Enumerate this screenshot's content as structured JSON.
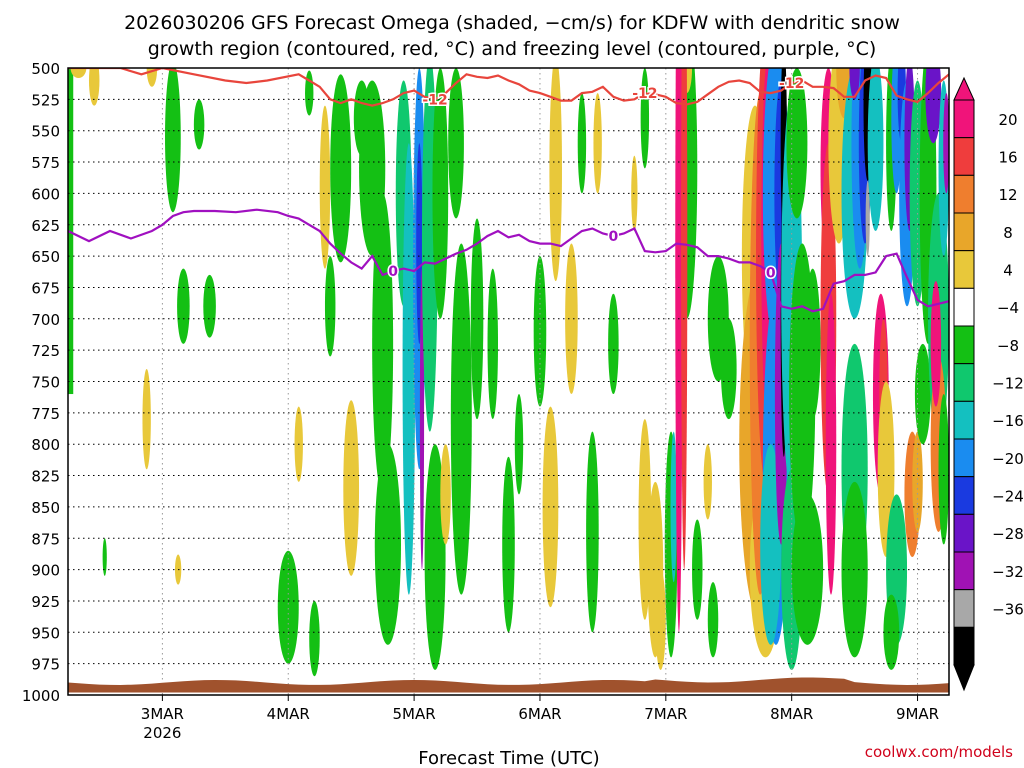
{
  "title_line1": "2026030206 GFS Forecast Omega (shaded, −cm/s) for KDFW with dendritic snow",
  "title_line2": "growth region (contoured, red, °C) and freezing level (contoured, purple, °C)",
  "x_axis_label": "Forecast Time (UTC)",
  "credit": "coolwx.com/models",
  "chart_data": {
    "type": "heatmap",
    "y_ticks": [
      "500",
      "525",
      "550",
      "575",
      "600",
      "625",
      "650",
      "675",
      "700",
      "725",
      "750",
      "775",
      "800",
      "825",
      "850",
      "875",
      "900",
      "925",
      "950",
      "975",
      "1000"
    ],
    "y_range": [
      500,
      1000
    ],
    "x_range_hours": [
      0,
      168
    ],
    "x_ticks": [
      {
        "label": "3MAR",
        "sub": "2026",
        "hour": 18
      },
      {
        "label": "4MAR",
        "sub": "",
        "hour": 42
      },
      {
        "label": "5MAR",
        "sub": "",
        "hour": 66
      },
      {
        "label": "6MAR",
        "sub": "",
        "hour": 90
      },
      {
        "label": "7MAR",
        "sub": "",
        "hour": 114
      },
      {
        "label": "8MAR",
        "sub": "",
        "hour": 138
      },
      {
        "label": "9MAR",
        "sub": "",
        "hour": 162
      }
    ],
    "grid": true,
    "colorbar": {
      "labels": [
        "20",
        "16",
        "12",
        "8",
        "4",
        "−4",
        "−8",
        "−12",
        "−16",
        "−20",
        "−24",
        "−28",
        "−32",
        "−36"
      ],
      "colors": [
        "#f0147a",
        "#ef3d3d",
        "#ef7e2e",
        "#e8a62a",
        "#e8c83a",
        "#ffffff",
        "#14c014",
        "#10c86e",
        "#14c0c0",
        "#1a8cf0",
        "#1a3ae0",
        "#6a14c8",
        "#a012b4",
        "#a8a8a8",
        "#000000"
      ]
    },
    "series": [
      {
        "name": "-12",
        "color": "#e8453c",
        "x": [
          0,
          10,
          14,
          18,
          24,
          30,
          34,
          38,
          44,
          46,
          48,
          50,
          52,
          54,
          56,
          58,
          60,
          62,
          64,
          66,
          68,
          70,
          72,
          74,
          76,
          78,
          80,
          82,
          84,
          86,
          88,
          90,
          92,
          94,
          96,
          98,
          100,
          102,
          104,
          106,
          108,
          110,
          112,
          114,
          116,
          118,
          120,
          122,
          124,
          126,
          128,
          130,
          132,
          134,
          136,
          138,
          140,
          142,
          144,
          146,
          148,
          150,
          152,
          154,
          156,
          158,
          160,
          162,
          164,
          166,
          168
        ],
        "values": [
          500,
          500,
          505,
          500,
          505,
          510,
          512,
          510,
          505,
          510,
          515,
          525,
          528,
          525,
          528,
          530,
          528,
          525,
          520,
          518,
          523,
          525,
          520,
          512,
          505,
          507,
          508,
          506,
          510,
          513,
          518,
          520,
          523,
          526,
          526,
          520,
          519,
          515,
          523,
          526,
          525,
          520,
          521,
          523,
          528,
          529,
          527,
          521,
          515,
          511,
          510,
          512,
          519,
          520,
          518,
          512,
          510,
          515,
          515,
          516,
          523,
          523,
          510,
          506,
          508,
          522,
          525,
          527,
          520,
          512,
          505
        ]
      },
      {
        "name": "0",
        "color": "#a010c0",
        "x": [
          0,
          4,
          8,
          12,
          16,
          18,
          20,
          22,
          24,
          28,
          32,
          36,
          40,
          42,
          44,
          46,
          48,
          50,
          52,
          54,
          56,
          58,
          60,
          62,
          64,
          66,
          68,
          70,
          72,
          74,
          76,
          78,
          80,
          82,
          84,
          86,
          88,
          90,
          92,
          94,
          96,
          98,
          100,
          102,
          104,
          106,
          108,
          110,
          112,
          114,
          116,
          118,
          120,
          122,
          124,
          126,
          128,
          130,
          132,
          134,
          136,
          138,
          140,
          142,
          144,
          146,
          148,
          150,
          152,
          154,
          156,
          158,
          160,
          162,
          164,
          166,
          168
        ],
        "values": [
          630,
          638,
          630,
          636,
          630,
          625,
          618,
          615,
          614,
          614,
          615,
          613,
          615,
          618,
          620,
          625,
          630,
          640,
          648,
          655,
          660,
          650,
          665,
          662,
          660,
          662,
          655,
          656,
          652,
          648,
          645,
          640,
          634,
          630,
          635,
          633,
          638,
          640,
          640,
          642,
          636,
          630,
          628,
          632,
          634,
          632,
          628,
          646,
          647,
          646,
          640,
          641,
          643,
          650,
          650,
          652,
          655,
          655,
          658,
          663,
          690,
          692,
          690,
          694,
          692,
          672,
          670,
          665,
          665,
          663,
          650,
          648,
          667,
          685,
          690,
          688,
          686
        ]
      }
    ]
  }
}
